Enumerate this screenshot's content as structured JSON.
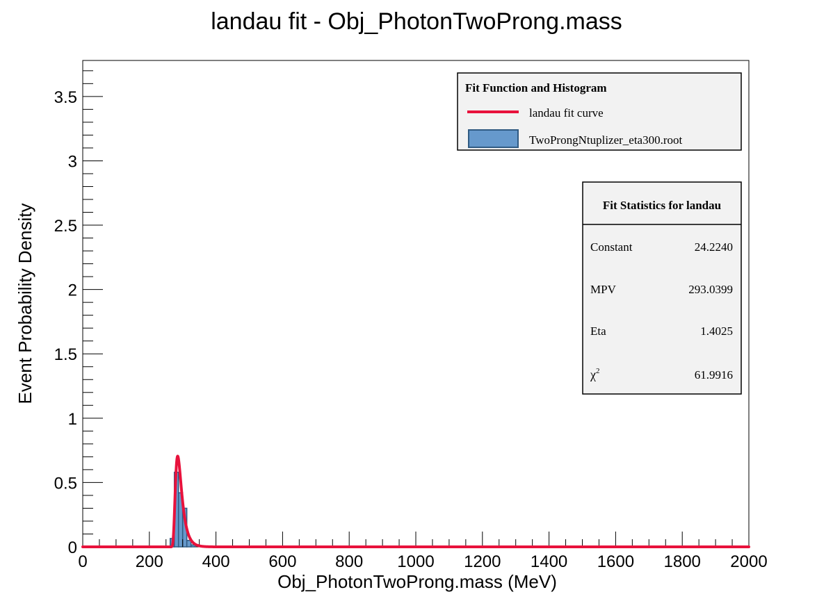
{
  "chart_data": {
    "type": "bar",
    "title": "landau fit - Obj_PhotonTwoProng.mass",
    "xlabel": "Obj_PhotonTwoProng.mass (MeV)",
    "ylabel": "Event Probability Density",
    "xlim": [
      0,
      2000
    ],
    "ylim": [
      0,
      3.78
    ],
    "x_ticks": [
      "0",
      "200",
      "400",
      "600",
      "800",
      "1000",
      "1200",
      "1400",
      "1600",
      "1800",
      "2000"
    ],
    "y_ticks": [
      "0",
      "0.5",
      "1",
      "1.5",
      "2",
      "2.5",
      "3",
      "3.5"
    ],
    "histogram": {
      "name": "TwoProngNtuplizer_eta300.root",
      "color": "#6699cc",
      "bin_width": 12.5,
      "bins": [
        {
          "x0": 262.5,
          "value": 0.065
        },
        {
          "x0": 275.0,
          "value": 0.58
        },
        {
          "x0": 287.5,
          "value": 0.42
        },
        {
          "x0": 300.0,
          "value": 0.3
        },
        {
          "x0": 312.5,
          "value": 0.05
        },
        {
          "x0": 325.0,
          "value": 0.015
        }
      ]
    },
    "fit": {
      "name": "landau fit curve",
      "color": "#e8123c",
      "function": "landau",
      "constant": 24.224,
      "mpv": 293.0399,
      "eta": 1.4025,
      "peak_value": 0.705
    },
    "legend": {
      "title": "Fit Function and Histogram",
      "placement": "top-right",
      "entries": [
        "landau fit curve",
        "TwoProngNtuplizer_eta300.root"
      ]
    },
    "stats": {
      "title": "Fit Statistics for landau",
      "rows": [
        {
          "label": "Constant",
          "value": "24.2240"
        },
        {
          "label": "MPV",
          "value": "293.0399"
        },
        {
          "label": "Eta",
          "value": "1.4025"
        },
        {
          "label": "χ",
          "sup": "2",
          "value": "61.9916"
        }
      ]
    }
  }
}
